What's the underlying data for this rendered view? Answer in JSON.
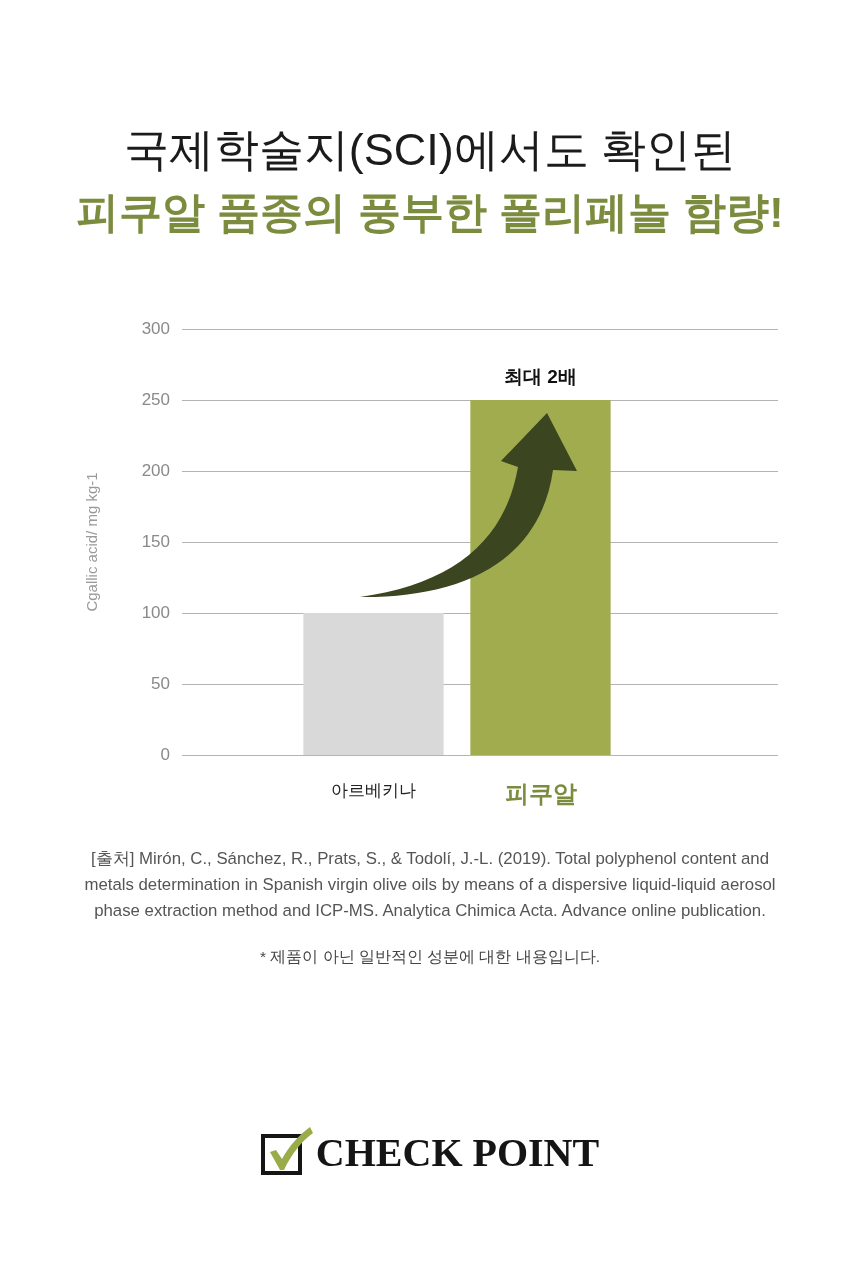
{
  "chart_data": {
    "type": "bar",
    "title": "국제학술지(SCI)에서도 확인된",
    "subtitle": "피쿠알 품종의 풍부한 폴리페놀 함량!",
    "ylabel": "Cgallic acid/ mg kg-1",
    "categories": [
      "아르베키나",
      "피쿠알"
    ],
    "values": [
      100,
      250
    ],
    "colors": [
      "#d9d9d9",
      "#a1ac4f"
    ],
    "ylim": [
      0,
      300
    ],
    "yticks": [
      0,
      50,
      100,
      150,
      200,
      250,
      300
    ],
    "grid": "y",
    "annotations": [
      {
        "text": "최대 2배",
        "x": "피쿠알",
        "y": 250
      },
      "[출처] Mirón, C., Sánchez, R., Prats, S., & Todolí, J.-L. (2019). Total polyphenol content and metals determination in Spanish virgin olive oils by means of a dispersive liquid-liquid aerosol phase extraction method and ICP-MS. Analytica Chimica Acta. Advance online publication.",
      "* 제품이 아닌 일반적인 성분에 대한 내용입니다.",
      "CHECK POINT"
    ]
  }
}
